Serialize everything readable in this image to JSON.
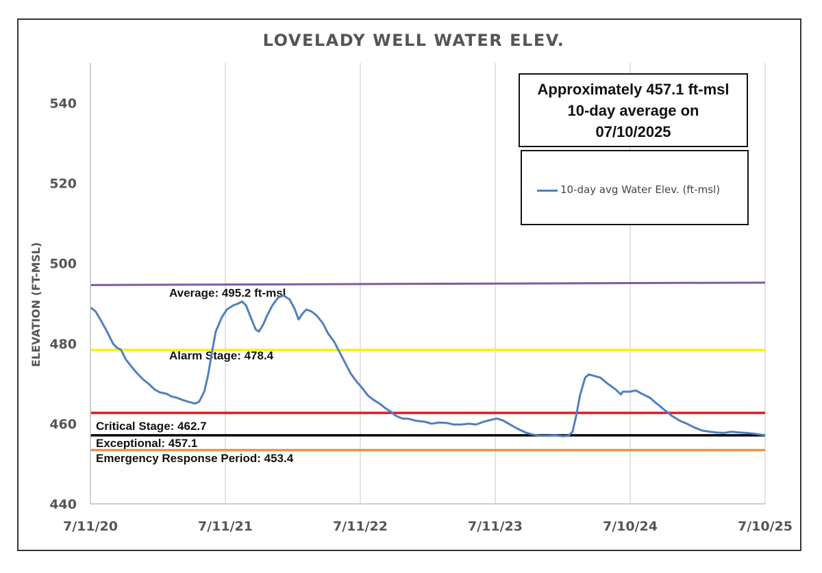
{
  "note": {
    "line1": "Approximately 457.1 ft-msl",
    "line2": "10-day average on",
    "line3": "07/10/2025"
  },
  "colors": {
    "series": "#4f7fbf",
    "average": "#7b5aa6",
    "alarm": "#f2f216",
    "critical": "#e8191b",
    "exceptional": "#000000",
    "emergency": "#f0904a",
    "grid": "#d9d9d9"
  },
  "chart_data": {
    "type": "line",
    "title": "LOVELADY WELL WATER ELEV.",
    "ylabel": "ELEVATION (FT-MSL)",
    "xlabel": "",
    "ylim": [
      440,
      550
    ],
    "yticks": [
      440,
      460,
      480,
      500,
      520,
      540
    ],
    "xlim": [
      "2020-07-11",
      "2025-07-10"
    ],
    "xticks": [
      {
        "date": "2020-07-11",
        "label": "7/11/20"
      },
      {
        "date": "2021-07-11",
        "label": "7/11/21"
      },
      {
        "date": "2022-07-11",
        "label": "7/11/22"
      },
      {
        "date": "2023-07-11",
        "label": "7/11/23"
      },
      {
        "date": "2024-07-10",
        "label": "7/10/24"
      },
      {
        "date": "2025-07-10",
        "label": "7/10/25"
      }
    ],
    "grid": "vertical",
    "legend_position": "top-right",
    "series": [
      {
        "name": "10-day avg Water Elev. (ft-msl)",
        "points": [
          [
            "2020-07-11",
            489.0
          ],
          [
            "2020-07-25",
            488.0
          ],
          [
            "2020-08-10",
            485.5
          ],
          [
            "2020-08-25",
            483.0
          ],
          [
            "2020-09-10",
            480.0
          ],
          [
            "2020-09-20",
            479.0
          ],
          [
            "2020-10-01",
            478.5
          ],
          [
            "2020-10-15",
            476.0
          ],
          [
            "2020-11-01",
            474.0
          ],
          [
            "2020-11-15",
            472.5
          ],
          [
            "2020-12-01",
            471.0
          ],
          [
            "2020-12-15",
            470.0
          ],
          [
            "2021-01-01",
            468.5
          ],
          [
            "2021-01-15",
            467.8
          ],
          [
            "2021-02-01",
            467.5
          ],
          [
            "2021-02-15",
            466.8
          ],
          [
            "2021-03-01",
            466.5
          ],
          [
            "2021-03-15",
            466.0
          ],
          [
            "2021-04-01",
            465.5
          ],
          [
            "2021-04-20",
            465.0
          ],
          [
            "2021-05-01",
            465.5
          ],
          [
            "2021-05-15",
            468.0
          ],
          [
            "2021-05-25",
            472.0
          ],
          [
            "2021-06-05",
            478.0
          ],
          [
            "2021-06-15",
            483.0
          ],
          [
            "2021-07-01",
            486.5
          ],
          [
            "2021-07-15",
            488.5
          ],
          [
            "2021-08-01",
            489.5
          ],
          [
            "2021-08-15",
            490.0
          ],
          [
            "2021-08-25",
            490.5
          ],
          [
            "2021-09-05",
            489.5
          ],
          [
            "2021-09-20",
            486.0
          ],
          [
            "2021-10-01",
            483.5
          ],
          [
            "2021-10-10",
            483.0
          ],
          [
            "2021-10-20",
            484.5
          ],
          [
            "2021-11-01",
            487.0
          ],
          [
            "2021-11-15",
            489.5
          ],
          [
            "2021-12-01",
            491.5
          ],
          [
            "2021-12-15",
            492.0
          ],
          [
            "2022-01-01",
            491.0
          ],
          [
            "2022-01-15",
            488.5
          ],
          [
            "2022-01-25",
            486.0
          ],
          [
            "2022-02-05",
            487.5
          ],
          [
            "2022-02-15",
            488.5
          ],
          [
            "2022-03-01",
            488.0
          ],
          [
            "2022-03-15",
            487.0
          ],
          [
            "2022-04-01",
            485.0
          ],
          [
            "2022-04-15",
            482.5
          ],
          [
            "2022-05-01",
            480.5
          ],
          [
            "2022-05-15",
            478.0
          ],
          [
            "2022-06-01",
            475.0
          ],
          [
            "2022-06-15",
            472.5
          ],
          [
            "2022-07-01",
            470.5
          ],
          [
            "2022-07-15",
            469.0
          ],
          [
            "2022-08-01",
            467.0
          ],
          [
            "2022-08-15",
            466.0
          ],
          [
            "2022-09-01",
            465.0
          ],
          [
            "2022-09-15",
            464.0
          ],
          [
            "2022-10-01",
            463.0
          ],
          [
            "2022-10-15",
            462.0
          ],
          [
            "2022-11-01",
            461.3
          ],
          [
            "2022-11-20",
            461.2
          ],
          [
            "2022-12-10",
            460.7
          ],
          [
            "2023-01-01",
            460.5
          ],
          [
            "2023-01-20",
            460.0
          ],
          [
            "2023-02-10",
            460.3
          ],
          [
            "2023-03-01",
            460.2
          ],
          [
            "2023-03-20",
            459.8
          ],
          [
            "2023-04-10",
            459.8
          ],
          [
            "2023-05-01",
            460.0
          ],
          [
            "2023-05-20",
            459.8
          ],
          [
            "2023-06-10",
            460.5
          ],
          [
            "2023-07-01",
            461.0
          ],
          [
            "2023-07-15",
            461.3
          ],
          [
            "2023-08-01",
            460.8
          ],
          [
            "2023-08-20",
            459.8
          ],
          [
            "2023-09-10",
            458.7
          ],
          [
            "2023-10-01",
            457.8
          ],
          [
            "2023-10-20",
            457.3
          ],
          [
            "2023-11-10",
            457.0
          ],
          [
            "2023-12-01",
            457.0
          ],
          [
            "2023-12-20",
            457.1
          ],
          [
            "2024-01-10",
            456.9
          ],
          [
            "2024-01-25",
            457.0
          ],
          [
            "2024-02-05",
            458.0
          ],
          [
            "2024-02-15",
            462.0
          ],
          [
            "2024-02-25",
            467.0
          ],
          [
            "2024-03-10",
            471.5
          ],
          [
            "2024-03-20",
            472.3
          ],
          [
            "2024-04-01",
            472.0
          ],
          [
            "2024-04-20",
            471.5
          ],
          [
            "2024-05-10",
            470.0
          ],
          [
            "2024-06-01",
            468.5
          ],
          [
            "2024-06-15",
            467.3
          ],
          [
            "2024-06-20",
            468.0
          ],
          [
            "2024-07-10",
            468.0
          ],
          [
            "2024-07-25",
            468.3
          ],
          [
            "2024-08-10",
            467.5
          ],
          [
            "2024-09-01",
            466.5
          ],
          [
            "2024-09-20",
            465.0
          ],
          [
            "2024-10-10",
            463.5
          ],
          [
            "2024-10-30",
            462.0
          ],
          [
            "2024-11-20",
            460.8
          ],
          [
            "2024-12-10",
            460.0
          ],
          [
            "2025-01-01",
            459.0
          ],
          [
            "2025-01-20",
            458.3
          ],
          [
            "2025-02-10",
            458.0
          ],
          [
            "2025-03-01",
            457.8
          ],
          [
            "2025-03-20",
            457.7
          ],
          [
            "2025-04-10",
            458.0
          ],
          [
            "2025-05-01",
            457.8
          ],
          [
            "2025-05-20",
            457.7
          ],
          [
            "2025-06-10",
            457.5
          ],
          [
            "2025-06-25",
            457.3
          ],
          [
            "2025-07-10",
            457.1
          ]
        ]
      }
    ],
    "reference_lines": [
      {
        "key": "average",
        "label": "Average: 495.2 ft-msl",
        "y_start": 494.6,
        "y_end": 495.2
      },
      {
        "key": "alarm",
        "label": "Alarm Stage: 478.4",
        "y_start": 478.4,
        "y_end": 478.4
      },
      {
        "key": "critical",
        "label": "Critical Stage: 462.7",
        "y_start": 462.7,
        "y_end": 462.7
      },
      {
        "key": "exceptional",
        "label": "Exceptional: 457.1",
        "y_start": 457.1,
        "y_end": 457.1
      },
      {
        "key": "emergency",
        "label": "Emergency Response Period: 453.4",
        "y_start": 453.4,
        "y_end": 453.4
      }
    ]
  }
}
